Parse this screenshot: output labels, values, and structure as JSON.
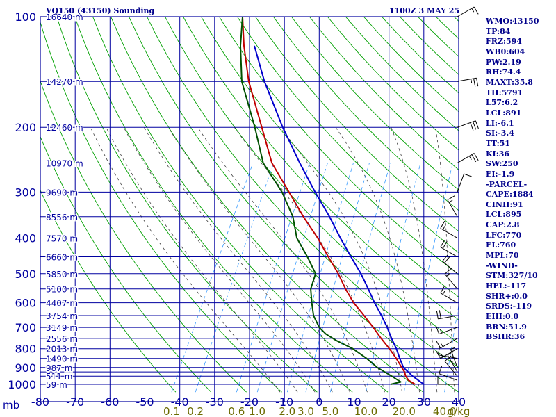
{
  "header": {
    "station": "VQ150 (43150) Sounding",
    "time": "1100Z  3 MAY 25"
  },
  "stats": [
    "WMO:43150",
    "TP:84",
    "FRZ:594",
    "WB0:604",
    "PW:2.19",
    "RH:74.4",
    "MAXT:35.8",
    "TH:5791",
    "L57:6.2",
    "LCL:891",
    "LI:-6.1",
    "SI:-3.4",
    "TT:51",
    "KI:36",
    "SW:250",
    "EI:-1.9",
    "-PARCEL-",
    "CAPE:1884",
    "CINH:91",
    "LCL:895",
    "CAP:2.8",
    "LFC:770",
    "EL:760",
    "MPL:70",
    "-WIND-",
    "STM:327/10",
    "HEL:-117",
    "SHR+:0.0",
    "SRDS:-119",
    "EHI:0.0",
    "BRN:51.9",
    "BSHR:36"
  ],
  "colors": {
    "grid": "#0000a0",
    "dry_adiabat": "#00a000",
    "moist_adiabat": "#404040",
    "mixing_ratio": "#3399ff",
    "temperature": "#c00000",
    "dewpoint": "#005000",
    "parcel": "#0000cc",
    "wind": "#000000",
    "text": "#00008b",
    "mixing_label": "#6b6b00"
  },
  "chart_data": {
    "type": "skew-t log-p sounding",
    "title": "VQ150 (43150) Sounding",
    "valid_time": "1100Z  3 MAY 25",
    "y_axis_label": "mb",
    "pressure_range_mb": [
      1050,
      100
    ],
    "temperature_range_c": [
      -80,
      40
    ],
    "pressure_ticks": [
      {
        "p": 100,
        "label": "100"
      },
      {
        "p": 200,
        "label": "200"
      },
      {
        "p": 300,
        "label": "300"
      },
      {
        "p": 400,
        "label": "400"
      },
      {
        "p": 500,
        "label": "500"
      },
      {
        "p": 600,
        "label": "600"
      },
      {
        "p": 700,
        "label": "700"
      },
      {
        "p": 800,
        "label": "800"
      },
      {
        "p": 900,
        "label": "900"
      },
      {
        "p": 1000,
        "label": "1000"
      }
    ],
    "pressure_gridlines": [
      100,
      150,
      200,
      250,
      300,
      350,
      400,
      450,
      500,
      550,
      600,
      650,
      700,
      750,
      800,
      850,
      900,
      925,
      950,
      1000
    ],
    "temperature_ticks": [
      {
        "t": -80,
        "label": "-80"
      },
      {
        "t": -70,
        "label": "-70"
      },
      {
        "t": -60,
        "label": "-60"
      },
      {
        "t": -50,
        "label": "-50"
      },
      {
        "t": -40,
        "label": "-40"
      },
      {
        "t": -30,
        "label": "-30"
      },
      {
        "t": -20,
        "label": "-20"
      },
      {
        "t": -10,
        "label": "-10"
      },
      {
        "t": 0,
        "label": "0"
      },
      {
        "t": 10,
        "label": "10"
      },
      {
        "t": 20,
        "label": "20"
      },
      {
        "t": 30,
        "label": "30"
      },
      {
        "t": 40,
        "label": "40"
      }
    ],
    "height_labels": [
      {
        "p": 100,
        "label": "16640 m"
      },
      {
        "p": 150,
        "label": "14270 m"
      },
      {
        "p": 200,
        "label": "12460 m"
      },
      {
        "p": 250,
        "label": "10970 m"
      },
      {
        "p": 300,
        "label": "9690 m"
      },
      {
        "p": 350,
        "label": "8556 m"
      },
      {
        "p": 400,
        "label": "7570 m"
      },
      {
        "p": 450,
        "label": "6660 m"
      },
      {
        "p": 500,
        "label": "5850 m"
      },
      {
        "p": 550,
        "label": "5100 m"
      },
      {
        "p": 600,
        "label": "4407 m"
      },
      {
        "p": 650,
        "label": "3754 m"
      },
      {
        "p": 700,
        "label": "3149 m"
      },
      {
        "p": 750,
        "label": "2556 m"
      },
      {
        "p": 800,
        "label": "2013 m"
      },
      {
        "p": 850,
        "label": "1490 m"
      },
      {
        "p": 900,
        "label": "987 m"
      },
      {
        "p": 950,
        "label": "511 m"
      },
      {
        "p": 1000,
        "label": "59 m"
      }
    ],
    "mixing_ratio_labels_gkg": [
      "0.1",
      "0.2",
      "0.6",
      "1.0",
      "2.0",
      "3.0",
      "5.0",
      "10.0",
      "20.0",
      "40.0"
    ],
    "mixing_ratio_unit": "g/kg",
    "series": [
      {
        "name": "Temperature",
        "points": [
          {
            "p": 1000,
            "t": 27.5
          },
          {
            "p": 975,
            "t": 25.0
          },
          {
            "p": 950,
            "t": 23.5
          },
          {
            "p": 925,
            "t": 22.5
          },
          {
            "p": 900,
            "t": 21.0
          },
          {
            "p": 850,
            "t": 18.0
          },
          {
            "p": 800,
            "t": 14.5
          },
          {
            "p": 750,
            "t": 10.5
          },
          {
            "p": 700,
            "t": 6.5
          },
          {
            "p": 650,
            "t": 2.0
          },
          {
            "p": 600,
            "t": -3.0
          },
          {
            "p": 550,
            "t": -7.5
          },
          {
            "p": 500,
            "t": -12.0
          },
          {
            "p": 450,
            "t": -17.5
          },
          {
            "p": 400,
            "t": -23.5
          },
          {
            "p": 350,
            "t": -31.0
          },
          {
            "p": 300,
            "t": -39.0
          },
          {
            "p": 250,
            "t": -48.5
          },
          {
            "p": 200,
            "t": -57.0
          },
          {
            "p": 150,
            "t": -68.0
          },
          {
            "p": 120,
            "t": -75.0
          },
          {
            "p": 100,
            "t": -80.0
          }
        ]
      },
      {
        "name": "Dewpoint",
        "points": [
          {
            "p": 1000,
            "t": 20.5
          },
          {
            "p": 985,
            "t": 23.0
          },
          {
            "p": 975,
            "t": 22.0
          },
          {
            "p": 950,
            "t": 19.5
          },
          {
            "p": 900,
            "t": 14.0
          },
          {
            "p": 850,
            "t": 9.5
          },
          {
            "p": 800,
            "t": 4.0
          },
          {
            "p": 760,
            "t": -2.0
          },
          {
            "p": 730,
            "t": -6.0
          },
          {
            "p": 700,
            "t": -9.0
          },
          {
            "p": 650,
            "t": -12.5
          },
          {
            "p": 600,
            "t": -15.0
          },
          {
            "p": 550,
            "t": -17.5
          },
          {
            "p": 500,
            "t": -18.5
          },
          {
            "p": 450,
            "t": -23.5
          },
          {
            "p": 400,
            "t": -29.5
          },
          {
            "p": 350,
            "t": -34.0
          },
          {
            "p": 300,
            "t": -41.0
          },
          {
            "p": 250,
            "t": -51.0
          },
          {
            "p": 200,
            "t": -59.0
          },
          {
            "p": 150,
            "t": -70.0
          },
          {
            "p": 120,
            "t": -76.0
          },
          {
            "p": 100,
            "t": -80.0
          }
        ]
      },
      {
        "name": "Parcel",
        "points": [
          {
            "p": 1000,
            "t": 30.0
          },
          {
            "p": 950,
            "t": 25.5
          },
          {
            "p": 900,
            "t": 21.5
          },
          {
            "p": 850,
            "t": 19.0
          },
          {
            "p": 800,
            "t": 16.5
          },
          {
            "p": 750,
            "t": 13.5
          },
          {
            "p": 700,
            "t": 10.5
          },
          {
            "p": 650,
            "t": 7.0
          },
          {
            "p": 600,
            "t": 3.0
          },
          {
            "p": 550,
            "t": -1.0
          },
          {
            "p": 500,
            "t": -5.5
          },
          {
            "p": 450,
            "t": -11.0
          },
          {
            "p": 400,
            "t": -17.0
          },
          {
            "p": 350,
            "t": -23.5
          },
          {
            "p": 300,
            "t": -31.5
          },
          {
            "p": 250,
            "t": -40.5
          },
          {
            "p": 200,
            "t": -51.0
          },
          {
            "p": 150,
            "t": -63.5
          },
          {
            "p": 120,
            "t": -72.0
          }
        ]
      }
    ],
    "wind_profile": [
      {
        "p": 1000,
        "dir": 270,
        "kt": 10
      },
      {
        "p": 975,
        "dir": 290,
        "kt": 10
      },
      {
        "p": 950,
        "dir": 320,
        "kt": 10
      },
      {
        "p": 925,
        "dir": 330,
        "kt": 5
      },
      {
        "p": 900,
        "dir": 340,
        "kt": 5
      },
      {
        "p": 850,
        "dir": 280,
        "kt": 10
      },
      {
        "p": 800,
        "dir": 240,
        "kt": 15
      },
      {
        "p": 750,
        "dir": 240,
        "kt": 15
      },
      {
        "p": 700,
        "dir": 250,
        "kt": 15
      },
      {
        "p": 650,
        "dir": 260,
        "kt": 20
      },
      {
        "p": 600,
        "dir": 300,
        "kt": 15
      },
      {
        "p": 550,
        "dir": 320,
        "kt": 15
      },
      {
        "p": 500,
        "dir": 310,
        "kt": 20
      },
      {
        "p": 450,
        "dir": 300,
        "kt": 20
      },
      {
        "p": 400,
        "dir": 300,
        "kt": 15
      },
      {
        "p": 350,
        "dir": 330,
        "kt": 15
      },
      {
        "p": 300,
        "dir": 20,
        "kt": 10
      },
      {
        "p": 250,
        "dir": 60,
        "kt": 25
      },
      {
        "p": 200,
        "dir": 70,
        "kt": 30
      },
      {
        "p": 150,
        "dir": 80,
        "kt": 25
      },
      {
        "p": 100,
        "dir": 60,
        "kt": 15
      }
    ]
  }
}
